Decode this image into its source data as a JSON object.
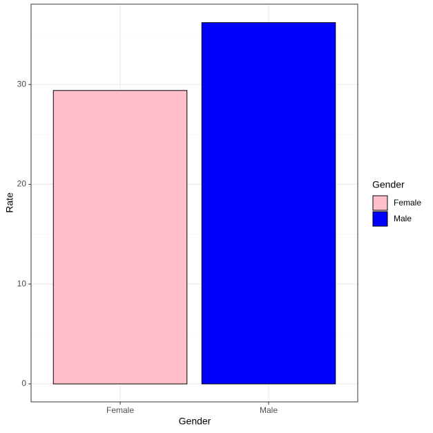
{
  "chart_data": {
    "type": "bar",
    "categories": [
      "Female",
      "Male"
    ],
    "values": [
      29.4,
      36.2
    ],
    "colors": [
      "#ffc0cb",
      "#0000ff"
    ],
    "x_label": "Gender",
    "y_label": "Rate",
    "ylim": [
      -1.8,
      38.05
    ],
    "yticks": [
      0,
      10,
      20,
      30
    ],
    "y_minor_ticks": [
      5,
      15,
      25,
      35
    ],
    "grid": true,
    "legend": {
      "title": "Gender",
      "position": "right"
    }
  }
}
